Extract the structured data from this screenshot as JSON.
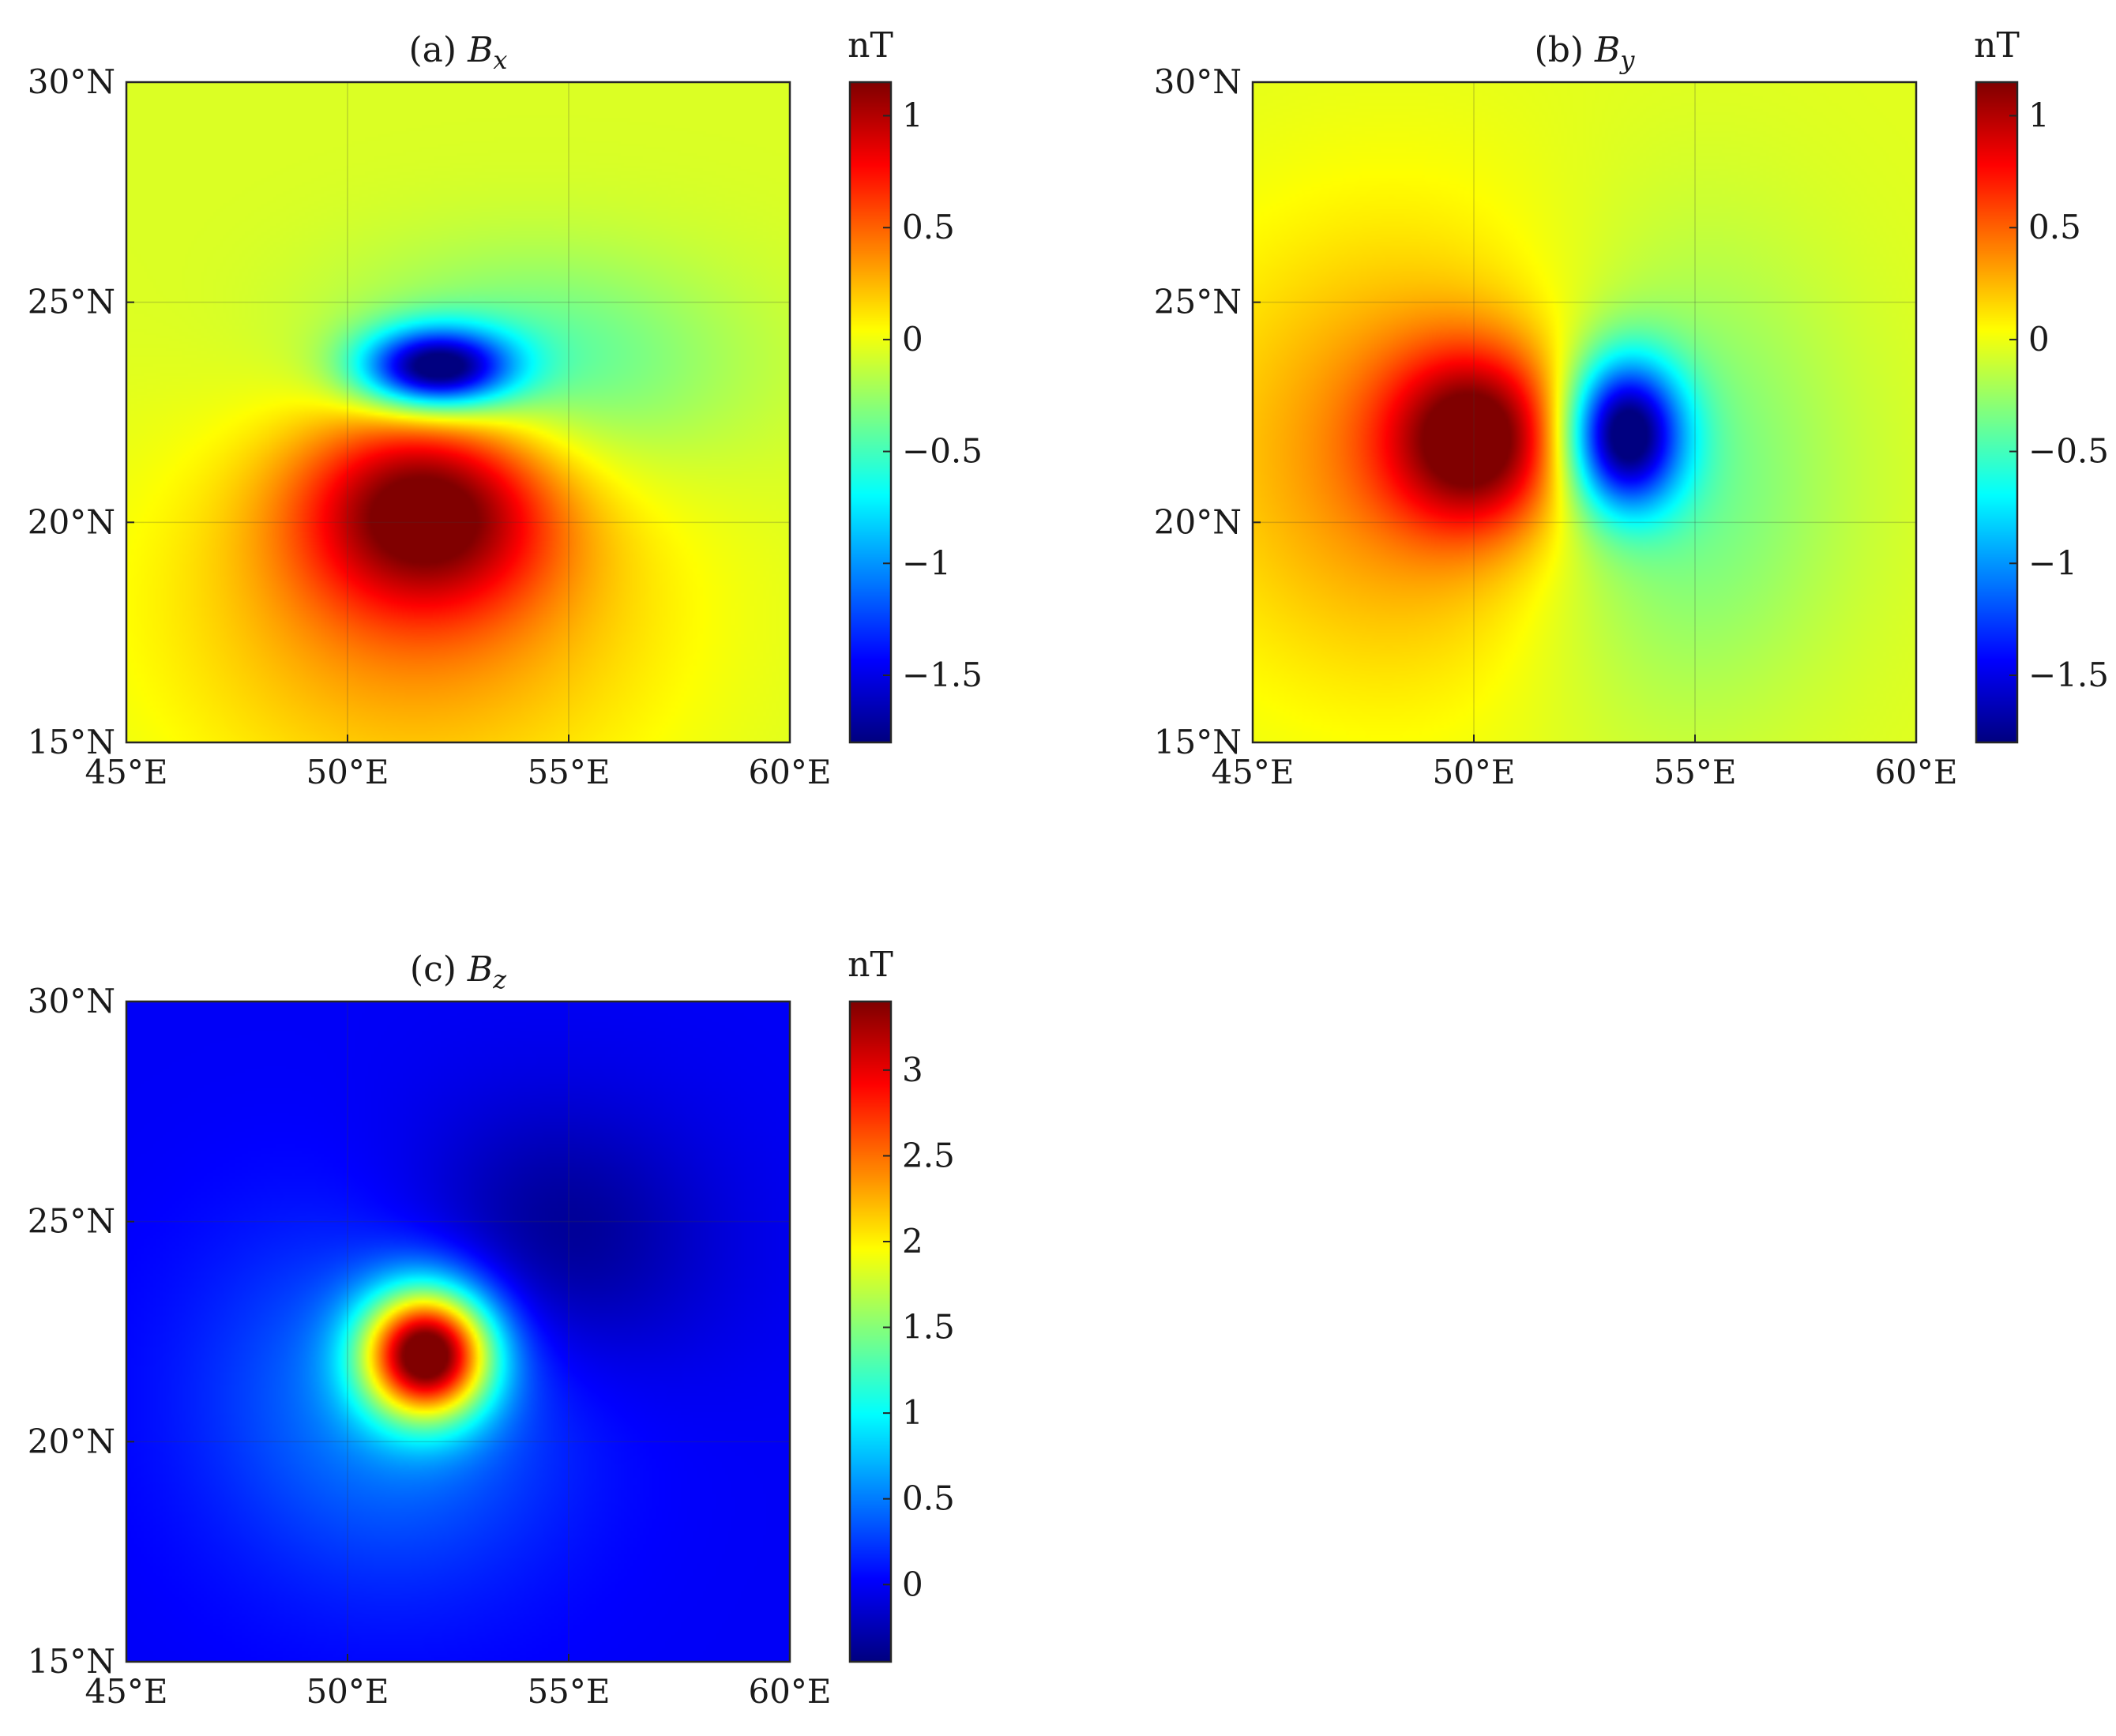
{
  "figure": {
    "type": "heatmap-panels",
    "background": "#ffffff",
    "colormap": "jet"
  },
  "chart_data": [
    {
      "type": "heatmap",
      "panel": "a",
      "title_prefix": "(a) ",
      "title_symbol": "B",
      "title_subscript": "x",
      "colorbar_unit": "nT",
      "colorbar_ticks": [
        "1",
        "0.5",
        "0",
        "−0.5",
        "−1",
        "−1.5"
      ],
      "colorbar_tick_values": [
        1,
        0.5,
        0,
        -0.5,
        -1,
        -1.5
      ],
      "clim": [
        -1.8,
        1.15
      ],
      "xlim": [
        45,
        60
      ],
      "ylim": [
        15,
        30
      ],
      "x_tick_values": [
        45,
        50,
        55,
        60
      ],
      "x_ticks": [
        "45°E",
        "50°E",
        "55°E",
        "60°E"
      ],
      "y_tick_values": [
        30,
        25,
        20,
        15
      ],
      "y_ticks": [
        "30°N",
        "25°N",
        "20°N",
        "15°N"
      ],
      "grid": true,
      "features": [
        {
          "kind": "max",
          "lon": 51.8,
          "lat": 20.4,
          "value": 1.15
        },
        {
          "kind": "min",
          "lon": 52.0,
          "lat": 23.5,
          "value": -1.8
        }
      ]
    },
    {
      "type": "heatmap",
      "panel": "b",
      "title_prefix": "(b) ",
      "title_symbol": "B",
      "title_subscript": "y",
      "colorbar_unit": "nT",
      "colorbar_ticks": [
        "1",
        "0.5",
        "0",
        "−0.5",
        "−1",
        "−1.5"
      ],
      "colorbar_tick_values": [
        1,
        0.5,
        0,
        -0.5,
        -1,
        -1.5
      ],
      "clim": [
        -1.8,
        1.15
      ],
      "xlim": [
        45,
        60
      ],
      "ylim": [
        15,
        30
      ],
      "x_tick_values": [
        45,
        50,
        55,
        60
      ],
      "x_ticks": [
        "45°E",
        "50°E",
        "55°E",
        "60°E"
      ],
      "y_tick_values": [
        30,
        25,
        20,
        15
      ],
      "y_ticks": [
        "30°N",
        "25°N",
        "20°N",
        "15°N"
      ],
      "grid": true,
      "features": [
        {
          "kind": "max",
          "lon": 50.1,
          "lat": 21.9,
          "value": 1.15
        },
        {
          "kind": "min",
          "lon": 53.4,
          "lat": 22.0,
          "value": -1.8
        }
      ]
    },
    {
      "type": "heatmap",
      "panel": "c",
      "title_prefix": "(c) ",
      "title_symbol": "B",
      "title_subscript": "z",
      "colorbar_unit": "nT",
      "colorbar_ticks": [
        "3",
        "2.5",
        "2",
        "1.5",
        "1",
        "0.5",
        "0"
      ],
      "colorbar_tick_values": [
        3,
        2.5,
        2,
        1.5,
        1,
        0.5,
        0
      ],
      "clim": [
        -0.45,
        3.4
      ],
      "xlim": [
        45,
        60
      ],
      "ylim": [
        15,
        30
      ],
      "x_tick_values": [
        45,
        50,
        55,
        60
      ],
      "x_ticks": [
        "45°E",
        "50°E",
        "55°E",
        "60°E"
      ],
      "y_tick_values": [
        30,
        25,
        20,
        15
      ],
      "y_ticks": [
        "30°N",
        "25°N",
        "20°N",
        "15°N"
      ],
      "grid": true,
      "features": [
        {
          "kind": "max",
          "lon": 51.8,
          "lat": 22.0,
          "value": 3.4
        },
        {
          "kind": "min",
          "lon": 54.5,
          "lat": 24.5,
          "value": -0.45
        }
      ]
    }
  ]
}
